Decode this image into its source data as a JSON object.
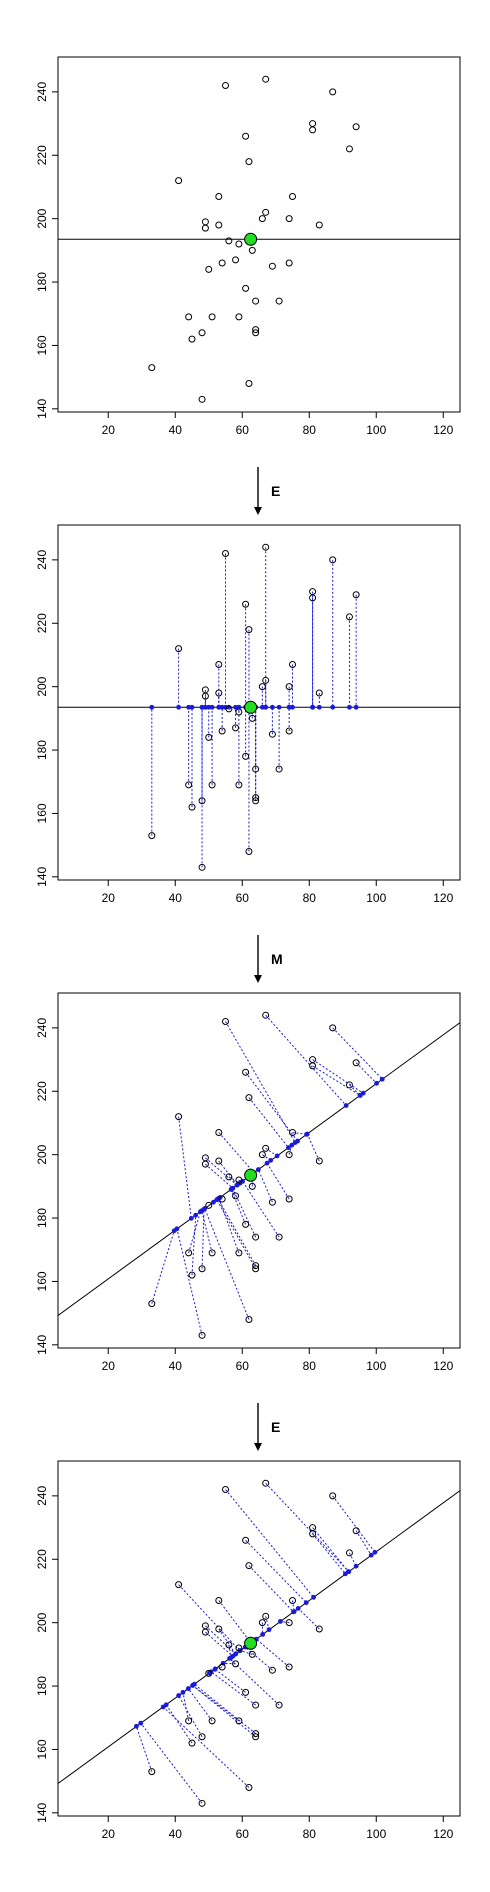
{
  "steps": [
    "E",
    "M",
    "E"
  ],
  "chart_data": [
    {
      "type": "scatter",
      "title": "",
      "xlabel": "",
      "ylabel": "",
      "xlim": [
        5,
        125
      ],
      "ylim": [
        139,
        251
      ],
      "xticks": [
        20,
        40,
        60,
        80,
        100,
        120
      ],
      "yticks": [
        140,
        160,
        180,
        200,
        220,
        240
      ],
      "grid": false,
      "colors": {
        "points": "#000000",
        "center": "#22dd22",
        "projections": "#1a1adb",
        "line": "#000000"
      },
      "points": [
        [
          33,
          153
        ],
        [
          41,
          212
        ],
        [
          44,
          169
        ],
        [
          45,
          162
        ],
        [
          48,
          164
        ],
        [
          48,
          143
        ],
        [
          49,
          199
        ],
        [
          49,
          197
        ],
        [
          50,
          184
        ],
        [
          51,
          169
        ],
        [
          53,
          198
        ],
        [
          53,
          207
        ],
        [
          54,
          186
        ],
        [
          55,
          242
        ],
        [
          56,
          193
        ],
        [
          58,
          187
        ],
        [
          59,
          169
        ],
        [
          59,
          192
        ],
        [
          61,
          178
        ],
        [
          61,
          226
        ],
        [
          62,
          148
        ],
        [
          62,
          218
        ],
        [
          63,
          190
        ],
        [
          64,
          174
        ],
        [
          64,
          165
        ],
        [
          64,
          164
        ],
        [
          66,
          200
        ],
        [
          67,
          202
        ],
        [
          67,
          244
        ],
        [
          69,
          185
        ],
        [
          71,
          174
        ],
        [
          74,
          186
        ],
        [
          74,
          200
        ],
        [
          75,
          207
        ],
        [
          81,
          228
        ],
        [
          81,
          230
        ],
        [
          83,
          198
        ],
        [
          87,
          240
        ],
        [
          92,
          222
        ],
        [
          94,
          229
        ]
      ],
      "center": [
        62.5,
        193.5
      ],
      "line": {
        "slope": 0,
        "intercept": 193.5
      },
      "projections": []
    },
    {
      "type": "scatter",
      "title": "",
      "xlabel": "",
      "ylabel": "",
      "xlim": [
        5,
        125
      ],
      "ylim": [
        139,
        251
      ],
      "xticks": [
        20,
        40,
        60,
        80,
        100,
        120
      ],
      "yticks": [
        140,
        160,
        180,
        200,
        220,
        240
      ],
      "grid": false,
      "colors": {
        "points": "#000000",
        "center": "#22dd22",
        "projections": "#1a1adb",
        "line": "#000000"
      },
      "points": [
        [
          33,
          153
        ],
        [
          41,
          212
        ],
        [
          44,
          169
        ],
        [
          45,
          162
        ],
        [
          48,
          164
        ],
        [
          48,
          143
        ],
        [
          49,
          199
        ],
        [
          49,
          197
        ],
        [
          50,
          184
        ],
        [
          51,
          169
        ],
        [
          53,
          198
        ],
        [
          53,
          207
        ],
        [
          54,
          186
        ],
        [
          55,
          242
        ],
        [
          56,
          193
        ],
        [
          58,
          187
        ],
        [
          59,
          169
        ],
        [
          59,
          192
        ],
        [
          61,
          178
        ],
        [
          61,
          226
        ],
        [
          62,
          148
        ],
        [
          62,
          218
        ],
        [
          63,
          190
        ],
        [
          64,
          174
        ],
        [
          64,
          165
        ],
        [
          64,
          164
        ],
        [
          66,
          200
        ],
        [
          67,
          202
        ],
        [
          67,
          244
        ],
        [
          69,
          185
        ],
        [
          71,
          174
        ],
        [
          74,
          186
        ],
        [
          74,
          200
        ],
        [
          75,
          207
        ],
        [
          81,
          228
        ],
        [
          81,
          230
        ],
        [
          83,
          198
        ],
        [
          87,
          240
        ],
        [
          92,
          222
        ],
        [
          94,
          229
        ]
      ],
      "center": [
        62.5,
        193.5
      ],
      "line": {
        "slope": 0,
        "intercept": 193.5
      },
      "projections": [
        [
          33,
          193.5
        ],
        [
          41,
          193.5
        ],
        [
          44,
          193.5
        ],
        [
          45,
          193.5
        ],
        [
          48,
          193.5
        ],
        [
          48,
          193.5
        ],
        [
          49,
          193.5
        ],
        [
          49,
          193.5
        ],
        [
          50,
          193.5
        ],
        [
          51,
          193.5
        ],
        [
          53,
          193.5
        ],
        [
          53,
          193.5
        ],
        [
          54,
          193.5
        ],
        [
          55,
          193.5
        ],
        [
          56,
          193.5
        ],
        [
          58,
          193.5
        ],
        [
          59,
          193.5
        ],
        [
          59,
          193.5
        ],
        [
          61,
          193.5
        ],
        [
          61,
          193.5
        ],
        [
          62,
          193.5
        ],
        [
          62,
          193.5
        ],
        [
          63,
          193.5
        ],
        [
          64,
          193.5
        ],
        [
          64,
          193.5
        ],
        [
          64,
          193.5
        ],
        [
          66,
          193.5
        ],
        [
          67,
          193.5
        ],
        [
          67,
          193.5
        ],
        [
          69,
          193.5
        ],
        [
          71,
          193.5
        ],
        [
          74,
          193.5
        ],
        [
          74,
          193.5
        ],
        [
          75,
          193.5
        ],
        [
          81,
          193.5
        ],
        [
          81,
          193.5
        ],
        [
          83,
          193.5
        ],
        [
          87,
          193.5
        ],
        [
          92,
          193.5
        ],
        [
          94,
          193.5
        ]
      ]
    },
    {
      "type": "scatter",
      "title": "",
      "xlabel": "",
      "ylabel": "",
      "xlim": [
        5,
        125
      ],
      "ylim": [
        139,
        251
      ],
      "xticks": [
        20,
        40,
        60,
        80,
        100,
        120
      ],
      "yticks": [
        140,
        160,
        180,
        200,
        220,
        240
      ],
      "grid": false,
      "colors": {
        "points": "#000000",
        "center": "#22dd22",
        "projections": "#1a1adb",
        "line": "#000000"
      },
      "points": [
        [
          33,
          153
        ],
        [
          41,
          212
        ],
        [
          44,
          169
        ],
        [
          45,
          162
        ],
        [
          48,
          164
        ],
        [
          48,
          143
        ],
        [
          49,
          199
        ],
        [
          49,
          197
        ],
        [
          50,
          184
        ],
        [
          51,
          169
        ],
        [
          53,
          198
        ],
        [
          53,
          207
        ],
        [
          54,
          186
        ],
        [
          55,
          242
        ],
        [
          56,
          193
        ],
        [
          58,
          187
        ],
        [
          59,
          169
        ],
        [
          59,
          192
        ],
        [
          61,
          178
        ],
        [
          61,
          226
        ],
        [
          62,
          148
        ],
        [
          62,
          218
        ],
        [
          63,
          190
        ],
        [
          64,
          174
        ],
        [
          64,
          165
        ],
        [
          64,
          164
        ],
        [
          66,
          200
        ],
        [
          67,
          202
        ],
        [
          67,
          244
        ],
        [
          69,
          185
        ],
        [
          71,
          174
        ],
        [
          74,
          186
        ],
        [
          74,
          200
        ],
        [
          75,
          207
        ],
        [
          81,
          228
        ],
        [
          81,
          230
        ],
        [
          83,
          198
        ],
        [
          87,
          240
        ],
        [
          92,
          222
        ],
        [
          94,
          229
        ]
      ],
      "center": [
        62.5,
        193.5
      ],
      "line": {
        "slope": 0.77,
        "intercept": 145.4
      },
      "projections": [
        [
          39.7,
          176.0
        ],
        [
          44.8,
          179.9
        ],
        [
          47.5,
          182.0
        ],
        [
          46.1,
          180.9
        ],
        [
          48.6,
          182.8
        ],
        [
          40.5,
          176.6
        ],
        [
          58.4,
          190.4
        ],
        [
          57.2,
          189.4
        ],
        [
          51.4,
          185.0
        ],
        [
          47.9,
          182.3
        ],
        [
          58.5,
          190.4
        ],
        [
          63.5,
          194.3
        ],
        [
          53.4,
          186.5
        ],
        [
          75.8,
          203.8
        ],
        [
          59.3,
          191.0
        ],
        [
          56.7,
          189.1
        ],
        [
          53.0,
          186.2
        ],
        [
          59.5,
          191.2
        ],
        [
          56.7,
          189.0
        ],
        [
          76.5,
          204.3
        ],
        [
          48.8,
          183.0
        ],
        [
          73.8,
          202.2
        ],
        [
          63.2,
          194.1
        ],
        [
          57.1,
          189.4
        ],
        [
          52.8,
          186.1
        ],
        [
          52.4,
          185.8
        ],
        [
          68.5,
          198.2
        ],
        [
          70.4,
          199.6
        ],
        [
          91.0,
          215.5
        ],
        [
          64.8,
          195.3
        ],
        [
          60.1,
          191.6
        ],
        [
          67.4,
          197.3
        ],
        [
          74.8,
          203.0
        ],
        [
          79.2,
          206.4
        ],
        [
          95.2,
          218.7
        ],
        [
          96.1,
          219.4
        ],
        [
          79.4,
          206.5
        ],
        [
          101.8,
          223.8
        ],
        [
          95.2,
          218.7
        ],
        [
          100.1,
          222.5
        ]
      ]
    },
    {
      "type": "scatter",
      "title": "",
      "xlabel": "",
      "ylabel": "",
      "xlim": [
        5,
        125
      ],
      "ylim": [
        139,
        251
      ],
      "xticks": [
        20,
        40,
        60,
        80,
        100,
        120
      ],
      "yticks": [
        140,
        160,
        180,
        200,
        220,
        240
      ],
      "grid": false,
      "colors": {
        "points": "#000000",
        "center": "#22dd22",
        "projections": "#1a1adb",
        "line": "#000000"
      },
      "points": [
        [
          33,
          153
        ],
        [
          41,
          212
        ],
        [
          44,
          169
        ],
        [
          45,
          162
        ],
        [
          48,
          164
        ],
        [
          48,
          143
        ],
        [
          49,
          199
        ],
        [
          49,
          197
        ],
        [
          50,
          184
        ],
        [
          51,
          169
        ],
        [
          53,
          198
        ],
        [
          53,
          207
        ],
        [
          54,
          186
        ],
        [
          55,
          242
        ],
        [
          56,
          193
        ],
        [
          58,
          187
        ],
        [
          59,
          169
        ],
        [
          59,
          192
        ],
        [
          61,
          178
        ],
        [
          61,
          226
        ],
        [
          62,
          148
        ],
        [
          62,
          218
        ],
        [
          63,
          190
        ],
        [
          64,
          174
        ],
        [
          64,
          165
        ],
        [
          64,
          164
        ],
        [
          66,
          200
        ],
        [
          67,
          202
        ],
        [
          67,
          244
        ],
        [
          69,
          185
        ],
        [
          71,
          174
        ],
        [
          74,
          186
        ],
        [
          74,
          200
        ],
        [
          75,
          207
        ],
        [
          81,
          228
        ],
        [
          81,
          230
        ],
        [
          83,
          198
        ],
        [
          87,
          240
        ],
        [
          92,
          222
        ],
        [
          94,
          229
        ]
      ],
      "center": [
        62.5,
        193.5
      ],
      "line": {
        "slope": 0.77,
        "intercept": 145.4
      },
      "projections": [
        [
          28.4,
          167.3
        ],
        [
          59.3,
          191.1
        ],
        [
          42.3,
          178.0
        ],
        [
          37.3,
          174.1
        ],
        [
          41.0,
          177.0
        ],
        [
          29.7,
          168.3
        ],
        [
          58.0,
          190.1
        ],
        [
          57.2,
          189.4
        ],
        [
          50.2,
          184.1
        ],
        [
          43.9,
          179.2
        ],
        [
          58.0,
          190.1
        ],
        [
          62.6,
          193.6
        ],
        [
          51.9,
          185.4
        ],
        [
          81.3,
          208.0
        ],
        [
          56.6,
          188.9
        ],
        [
          54.3,
          187.2
        ],
        [
          45.2,
          180.2
        ],
        [
          58.1,
          190.2
        ],
        [
          51.9,
          185.3
        ],
        [
          79.1,
          206.3
        ],
        [
          36.4,
          173.4
        ],
        [
          75.3,
          203.4
        ],
        [
          59.4,
          191.2
        ],
        [
          50.7,
          184.5
        ],
        [
          45.7,
          180.6
        ],
        [
          45.2,
          180.2
        ],
        [
          66.1,
          196.3
        ],
        [
          68.0,
          197.8
        ],
        [
          91.8,
          216.1
        ],
        [
          60.9,
          192.3
        ],
        [
          56.2,
          188.7
        ],
        [
          64.2,
          194.8
        ],
        [
          71.4,
          200.4
        ],
        [
          75.5,
          203.5
        ],
        [
          90.8,
          215.4
        ],
        [
          91.7,
          216.1
        ],
        [
          76.7,
          204.5
        ],
        [
          99.6,
          222.2
        ],
        [
          94.0,
          217.8
        ],
        [
          98.5,
          221.3
        ]
      ]
    }
  ]
}
